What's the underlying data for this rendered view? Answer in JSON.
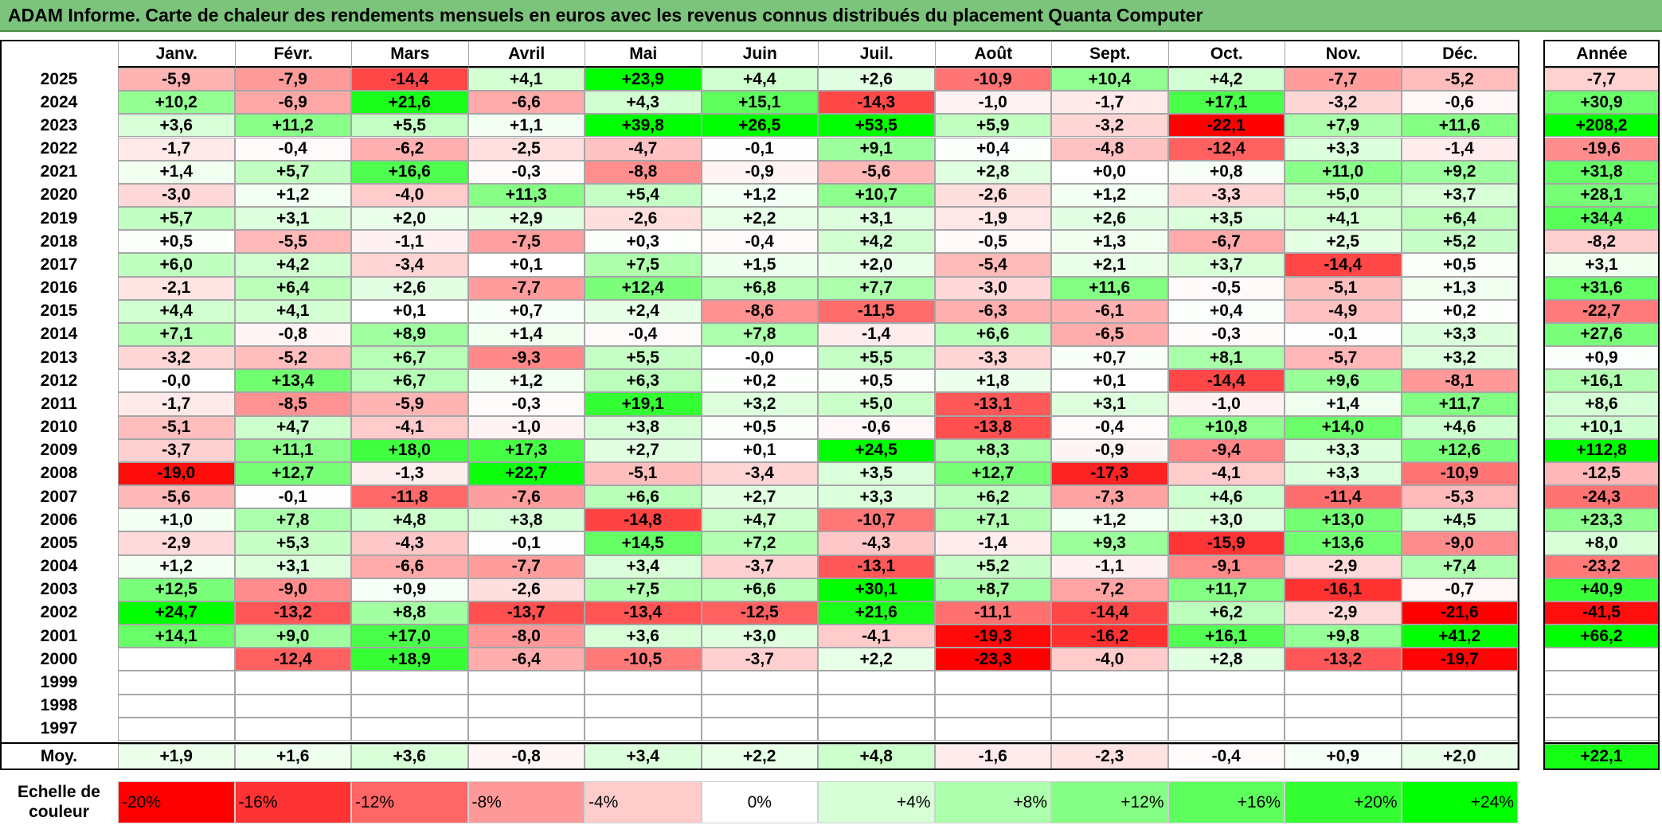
{
  "title": "ADAM Informe. Carte de chaleur des rendements mensuels en euros avec les revenus connus distribués du placement Quanta Computer",
  "chart_data": {
    "type": "heatmap",
    "title": "ADAM Informe. Carte de chaleur des rendements mensuels en euros avec les revenus connus distribués du placement Quanta Computer",
    "columns": [
      "Janv.",
      "Févr.",
      "Mars",
      "Avril",
      "Mai",
      "Juin",
      "Juil.",
      "Août",
      "Sept.",
      "Oct.",
      "Nov.",
      "Déc."
    ],
    "year_column_label": "Année",
    "rows": [
      {
        "year": "2025",
        "values": [
          "-5,9",
          "-7,9",
          "-14,4",
          "+4,1",
          "+23,9",
          "+4,4",
          "+2,6",
          "-10,9",
          "+10,4",
          "+4,2",
          "-7,7",
          "-5,2"
        ],
        "annual": "-7,7"
      },
      {
        "year": "2024",
        "values": [
          "+10,2",
          "-6,9",
          "+21,6",
          "-6,6",
          "+4,3",
          "+15,1",
          "-14,3",
          "-1,0",
          "-1,7",
          "+17,1",
          "-3,2",
          "-0,6"
        ],
        "annual": "+30,9"
      },
      {
        "year": "2023",
        "values": [
          "+3,6",
          "+11,2",
          "+5,5",
          "+1,1",
          "+39,8",
          "+26,5",
          "+53,5",
          "+5,9",
          "-3,2",
          "-22,1",
          "+7,9",
          "+11,6"
        ],
        "annual": "+208,2"
      },
      {
        "year": "2022",
        "values": [
          "-1,7",
          "-0,4",
          "-6,2",
          "-2,5",
          "-4,7",
          "-0,1",
          "+9,1",
          "+0,4",
          "-4,8",
          "-12,4",
          "+3,3",
          "-1,4"
        ],
        "annual": "-19,6"
      },
      {
        "year": "2021",
        "values": [
          "+1,4",
          "+5,7",
          "+16,6",
          "-0,3",
          "-8,8",
          "-0,9",
          "-5,6",
          "+2,8",
          "+0,0",
          "+0,8",
          "+11,0",
          "+9,2"
        ],
        "annual": "+31,8"
      },
      {
        "year": "2020",
        "values": [
          "-3,0",
          "+1,2",
          "-4,0",
          "+11,3",
          "+5,4",
          "+1,2",
          "+10,7",
          "-2,6",
          "+1,2",
          "-3,3",
          "+5,0",
          "+3,7"
        ],
        "annual": "+28,1"
      },
      {
        "year": "2019",
        "values": [
          "+5,7",
          "+3,1",
          "+2,0",
          "+2,9",
          "-2,6",
          "+2,2",
          "+3,1",
          "-1,9",
          "+2,6",
          "+3,5",
          "+4,1",
          "+6,4"
        ],
        "annual": "+34,4"
      },
      {
        "year": "2018",
        "values": [
          "+0,5",
          "-5,5",
          "-1,1",
          "-7,5",
          "+0,3",
          "-0,4",
          "+4,2",
          "-0,5",
          "+1,3",
          "-6,7",
          "+2,5",
          "+5,2"
        ],
        "annual": "-8,2"
      },
      {
        "year": "2017",
        "values": [
          "+6,0",
          "+4,2",
          "-3,4",
          "+0,1",
          "+7,5",
          "+1,5",
          "+2,0",
          "-5,4",
          "+2,1",
          "+3,7",
          "-14,4",
          "+0,5"
        ],
        "annual": "+3,1"
      },
      {
        "year": "2016",
        "values": [
          "-2,1",
          "+6,4",
          "+2,6",
          "-7,7",
          "+12,4",
          "+6,8",
          "+7,7",
          "-3,0",
          "+11,6",
          "-0,5",
          "-5,1",
          "+1,3"
        ],
        "annual": "+31,6"
      },
      {
        "year": "2015",
        "values": [
          "+4,4",
          "+4,1",
          "+0,1",
          "+0,7",
          "+2,4",
          "-8,6",
          "-11,5",
          "-6,3",
          "-6,1",
          "+0,4",
          "-4,9",
          "+0,2"
        ],
        "annual": "-22,7"
      },
      {
        "year": "2014",
        "values": [
          "+7,1",
          "-0,8",
          "+8,9",
          "+1,4",
          "-0,4",
          "+7,8",
          "-1,4",
          "+6,6",
          "-6,5",
          "-0,3",
          "-0,1",
          "+3,3"
        ],
        "annual": "+27,6"
      },
      {
        "year": "2013",
        "values": [
          "-3,2",
          "-5,2",
          "+6,7",
          "-9,3",
          "+5,5",
          "-0,0",
          "+5,5",
          "-3,3",
          "+0,7",
          "+8,1",
          "-5,7",
          "+3,2"
        ],
        "annual": "+0,9"
      },
      {
        "year": "2012",
        "values": [
          "-0,0",
          "+13,4",
          "+6,7",
          "+1,2",
          "+6,3",
          "+0,2",
          "+0,5",
          "+1,8",
          "+0,1",
          "-14,4",
          "+9,6",
          "-8,1"
        ],
        "annual": "+16,1"
      },
      {
        "year": "2011",
        "values": [
          "-1,7",
          "-8,5",
          "-5,9",
          "-0,3",
          "+19,1",
          "+3,2",
          "+5,0",
          "-13,1",
          "+3,1",
          "-1,0",
          "+1,4",
          "+11,7"
        ],
        "annual": "+8,6"
      },
      {
        "year": "2010",
        "values": [
          "-5,1",
          "+4,7",
          "-4,1",
          "-1,0",
          "+3,8",
          "+0,5",
          "-0,6",
          "-13,8",
          "-0,4",
          "+10,8",
          "+14,0",
          "+4,6"
        ],
        "annual": "+10,1"
      },
      {
        "year": "2009",
        "values": [
          "-3,7",
          "+11,1",
          "+18,0",
          "+17,3",
          "+2,7",
          "+0,1",
          "+24,5",
          "+8,3",
          "-0,9",
          "-9,4",
          "+3,3",
          "+12,6"
        ],
        "annual": "+112,8"
      },
      {
        "year": "2008",
        "values": [
          "-19,0",
          "+12,7",
          "-1,3",
          "+22,7",
          "-5,1",
          "-3,4",
          "+3,5",
          "+12,7",
          "-17,3",
          "-4,1",
          "+3,3",
          "-10,9"
        ],
        "annual": "-12,5"
      },
      {
        "year": "2007",
        "values": [
          "-5,6",
          "-0,1",
          "-11,8",
          "-7,6",
          "+6,6",
          "+2,7",
          "+3,3",
          "+6,2",
          "-7,3",
          "+4,6",
          "-11,4",
          "-5,3"
        ],
        "annual": "-24,3"
      },
      {
        "year": "2006",
        "values": [
          "+1,0",
          "+7,8",
          "+4,8",
          "+3,8",
          "-14,8",
          "+4,7",
          "-10,7",
          "+7,1",
          "+1,2",
          "+3,0",
          "+13,0",
          "+4,5"
        ],
        "annual": "+23,3"
      },
      {
        "year": "2005",
        "values": [
          "-2,9",
          "+5,3",
          "-4,3",
          "-0,1",
          "+14,5",
          "+7,2",
          "-4,3",
          "-1,4",
          "+9,3",
          "-15,9",
          "+13,6",
          "-9,0"
        ],
        "annual": "+8,0"
      },
      {
        "year": "2004",
        "values": [
          "+1,2",
          "+3,1",
          "-6,6",
          "-7,7",
          "+3,4",
          "-3,7",
          "-13,1",
          "+5,2",
          "-1,1",
          "-9,1",
          "-2,9",
          "+7,4"
        ],
        "annual": "-23,2"
      },
      {
        "year": "2003",
        "values": [
          "+12,5",
          "-9,0",
          "+0,9",
          "-2,6",
          "+7,5",
          "+6,6",
          "+30,1",
          "+8,7",
          "-7,2",
          "+11,7",
          "-16,1",
          "-0,7"
        ],
        "annual": "+40,9"
      },
      {
        "year": "2002",
        "values": [
          "+24,7",
          "-13,2",
          "+8,8",
          "-13,7",
          "-13,4",
          "-12,5",
          "+21,6",
          "-11,1",
          "-14,4",
          "+6,2",
          "-2,9",
          "-21,6"
        ],
        "annual": "-41,5"
      },
      {
        "year": "2001",
        "values": [
          "+14,1",
          "+9,0",
          "+17,0",
          "-8,0",
          "+3,6",
          "+3,0",
          "-4,1",
          "-19,3",
          "-16,2",
          "+16,1",
          "+9,8",
          "+41,2"
        ],
        "annual": "+66,2"
      },
      {
        "year": "2000",
        "values": [
          "",
          "-12,4",
          "+18,9",
          "-6,4",
          "-10,5",
          "-3,7",
          "+2,2",
          "-23,3",
          "-4,0",
          "+2,8",
          "-13,2",
          "-19,7"
        ],
        "annual": ""
      },
      {
        "year": "1999",
        "values": [
          "",
          "",
          "",
          "",
          "",
          "",
          "",
          "",
          "",
          "",
          "",
          ""
        ],
        "annual": ""
      },
      {
        "year": "1998",
        "values": [
          "",
          "",
          "",
          "",
          "",
          "",
          "",
          "",
          "",
          "",
          "",
          ""
        ],
        "annual": ""
      },
      {
        "year": "1997",
        "values": [
          "",
          "",
          "",
          "",
          "",
          "",
          "",
          "",
          "",
          "",
          "",
          ""
        ],
        "annual": ""
      }
    ],
    "average": {
      "label": "Moy.",
      "values": [
        "+1,9",
        "+1,6",
        "+3,6",
        "-0,8",
        "+3,4",
        "+2,2",
        "+4,8",
        "-1,6",
        "-2,3",
        "-0,4",
        "+0,9",
        "+2,0"
      ],
      "annual": "+22,1"
    },
    "color_scale": {
      "label": "Echelle de\ncouleur",
      "stops": [
        {
          "label": "-20%",
          "value": -20,
          "color": "#ff0000"
        },
        {
          "label": "-16%",
          "value": -16,
          "color": "#ff3333"
        },
        {
          "label": "-12%",
          "value": -12,
          "color": "#ff6666"
        },
        {
          "label": "-8%",
          "value": -8,
          "color": "#ff9999"
        },
        {
          "label": "-4%",
          "value": -4,
          "color": "#ffcccc"
        },
        {
          "label": "0%",
          "value": 0,
          "color": "#ffffff"
        },
        {
          "label": "+4%",
          "value": 4,
          "color": "#d6ffd6"
        },
        {
          "label": "+8%",
          "value": 8,
          "color": "#adffad"
        },
        {
          "label": "+12%",
          "value": 12,
          "color": "#85ff85"
        },
        {
          "label": "+16%",
          "value": 16,
          "color": "#5cff5c"
        },
        {
          "label": "+20%",
          "value": 20,
          "color": "#33ff33"
        },
        {
          "label": "+24%",
          "value": 24,
          "color": "#00ff00"
        }
      ]
    }
  }
}
